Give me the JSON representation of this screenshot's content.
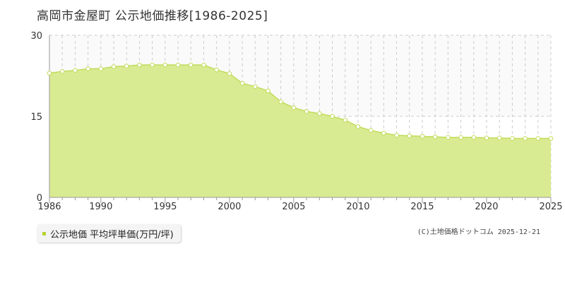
{
  "page": {
    "title": "高岡市金屋町 公示地価推移[1986-2025]",
    "credit": "(C)土地価格ドットコム 2025-12-21"
  },
  "legend": {
    "label": "公示地価 平均坪単価(万円/坪)",
    "color": "#b5d334"
  },
  "colors": {
    "area_fill": "#d9eb92",
    "line": "#c0dc5a",
    "point_fill": "#ffffff",
    "grid": "#cccccc",
    "axis": "#999999"
  },
  "chart_data": {
    "type": "area",
    "title": "高岡市金屋町 公示地価推移[1986-2025]",
    "xlabel": "",
    "ylabel": "",
    "ylim": [
      0,
      30
    ],
    "yticks": [
      0,
      15,
      30
    ],
    "xlim": [
      1986,
      2025
    ],
    "xticks": [
      1986,
      1990,
      1995,
      2000,
      2005,
      2010,
      2015,
      2020,
      2025
    ],
    "grid": true,
    "legend_position": "bottom-left",
    "series": [
      {
        "name": "公示地価 平均坪単価(万円/坪)",
        "x": [
          1986,
          1987,
          1988,
          1989,
          1990,
          1991,
          1992,
          1993,
          1994,
          1995,
          1996,
          1997,
          1998,
          1999,
          2000,
          2001,
          2002,
          2003,
          2004,
          2005,
          2006,
          2007,
          2008,
          2009,
          2010,
          2011,
          2012,
          2013,
          2014,
          2015,
          2016,
          2017,
          2018,
          2019,
          2020,
          2021,
          2022,
          2023,
          2024,
          2025
        ],
        "values": [
          23.0,
          23.3,
          23.5,
          23.8,
          23.8,
          24.2,
          24.3,
          24.5,
          24.5,
          24.5,
          24.5,
          24.5,
          24.5,
          23.6,
          22.9,
          21.1,
          20.5,
          19.7,
          17.7,
          16.6,
          15.9,
          15.5,
          15.0,
          14.3,
          13.1,
          12.4,
          11.9,
          11.5,
          11.4,
          11.3,
          11.2,
          11.1,
          11.1,
          11.1,
          11.0,
          11.0,
          10.9,
          10.9,
          10.9,
          10.9
        ]
      }
    ]
  }
}
